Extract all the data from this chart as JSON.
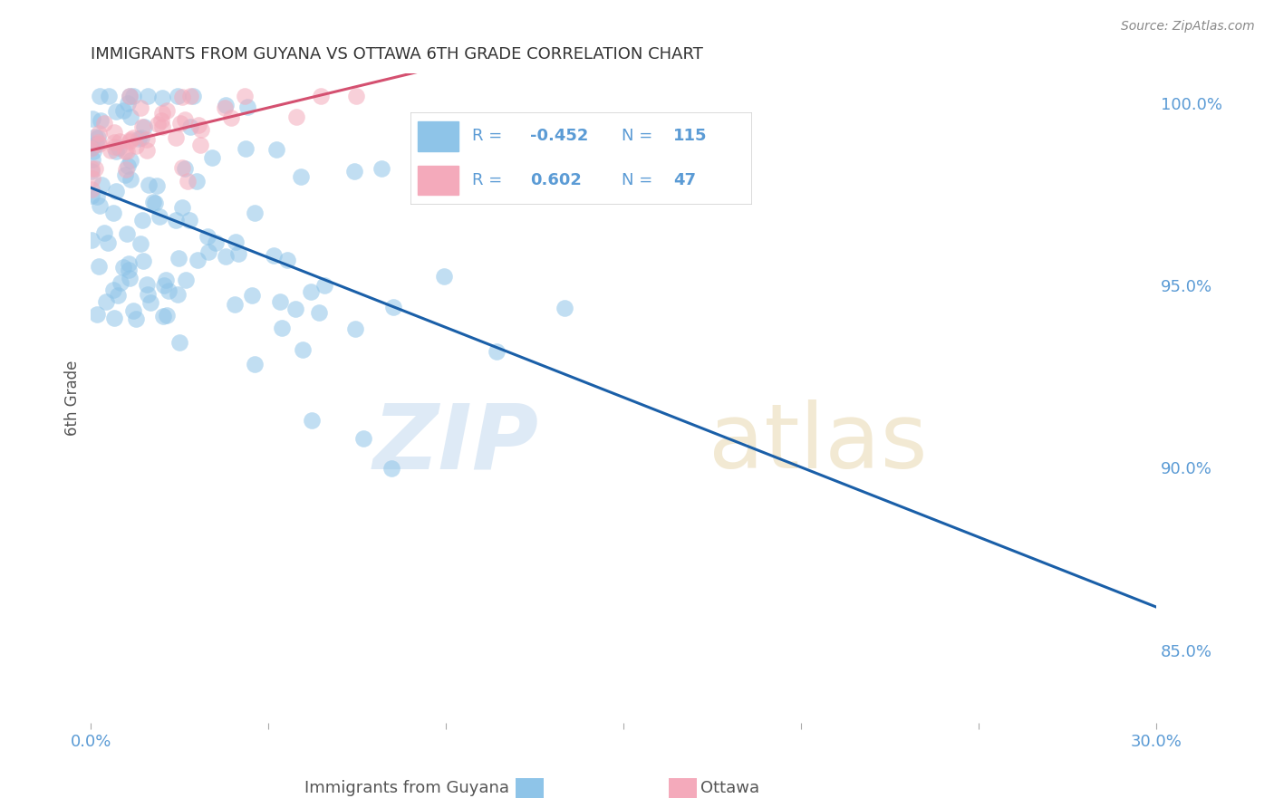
{
  "title": "IMMIGRANTS FROM GUYANA VS OTTAWA 6TH GRADE CORRELATION CHART",
  "source_text": "Source: ZipAtlas.com",
  "ylabel": "6th Grade",
  "xlim": [
    0.0,
    0.3
  ],
  "ylim": [
    0.83,
    1.008
  ],
  "xticks": [
    0.0,
    0.05,
    0.1,
    0.15,
    0.2,
    0.25,
    0.3
  ],
  "xtick_labels": [
    "0.0%",
    "",
    "",
    "",
    "",
    "",
    "30.0%"
  ],
  "yticks": [
    0.85,
    0.9,
    0.95,
    1.0
  ],
  "ytick_labels": [
    "85.0%",
    "90.0%",
    "95.0%",
    "100.0%"
  ],
  "blue_R": -0.452,
  "blue_N": 115,
  "pink_R": 0.602,
  "pink_N": 47,
  "blue_color": "#8EC4E8",
  "pink_color": "#F4AABB",
  "blue_line_color": "#1A5FA8",
  "pink_line_color": "#D45070",
  "legend_label_blue": "Immigrants from Guyana",
  "legend_label_pink": "Ottawa",
  "background_color": "#ffffff",
  "grid_color": "#cccccc",
  "title_color": "#333333",
  "ylabel_color": "#555555",
  "tick_label_color": "#5B9BD5",
  "source_color": "#888888",
  "legend_text_color": "#5B9BD5",
  "blue_seed": 42,
  "pink_seed": 123
}
